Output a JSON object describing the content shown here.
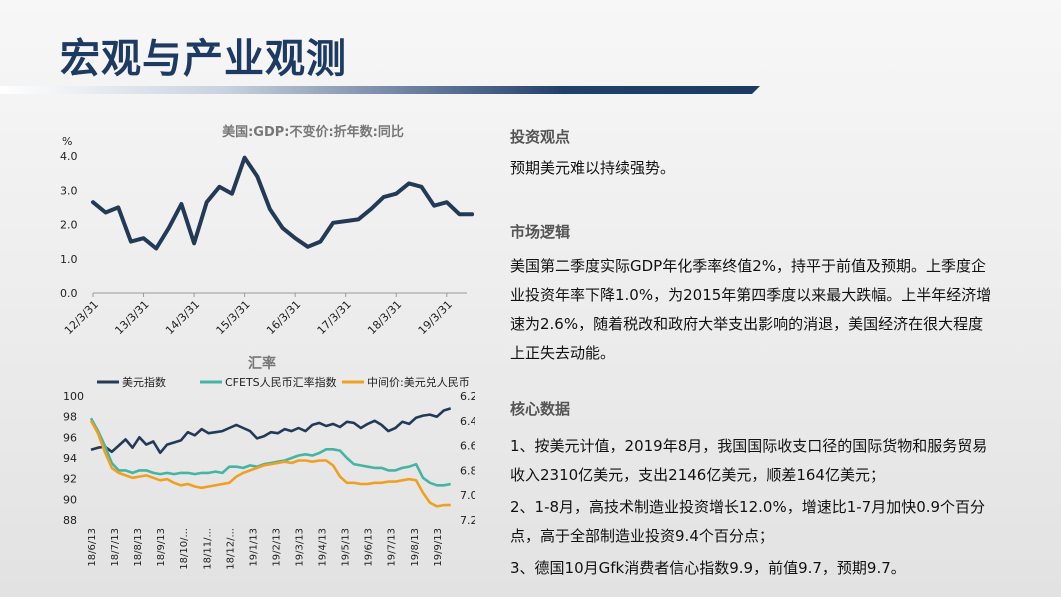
{
  "title": "宏观与产业观测",
  "chart_data": [
    {
      "type": "line",
      "title": "美国:GDP:不变价:折年数:同比",
      "ylabel": "%",
      "ylim": [
        0,
        4.0
      ],
      "yticks": [
        "0.0",
        "1.0",
        "2.0",
        "3.0",
        "4.0"
      ],
      "categories": [
        "12/3/31",
        "13/3/31",
        "14/3/31",
        "15/3/31",
        "16/3/31",
        "17/3/31",
        "18/3/31",
        "19/3/31"
      ],
      "series": [
        {
          "name": "",
          "color": "#233a56",
          "x": [
            0,
            0.25,
            0.5,
            0.75,
            1,
            1.25,
            1.5,
            1.75,
            2,
            2.25,
            2.5,
            2.75,
            3,
            3.25,
            3.5,
            3.75,
            4,
            4.25,
            4.5,
            4.75,
            5,
            5.25,
            5.5,
            5.75,
            6,
            6.25,
            6.5,
            6.75,
            7,
            7.25,
            7.5
          ],
          "values": [
            2.65,
            2.35,
            2.5,
            1.5,
            1.6,
            1.3,
            1.9,
            2.6,
            1.45,
            2.65,
            3.1,
            2.9,
            3.95,
            3.4,
            2.45,
            1.9,
            1.6,
            1.35,
            1.5,
            2.05,
            2.1,
            2.15,
            2.45,
            2.8,
            2.9,
            3.2,
            3.1,
            2.55,
            2.65,
            2.3,
            2.3
          ]
        }
      ]
    },
    {
      "type": "line",
      "title": "汇率",
      "categories": [
        "18/6/13",
        "18/7/13",
        "18/8/13",
        "18/9/13",
        "18/10/...",
        "18/11/...",
        "18/12/...",
        "19/1/13",
        "19/2/13",
        "19/3/13",
        "19/4/13",
        "19/5/13",
        "19/6/13",
        "19/7/13",
        "19/8/13",
        "19/9/13"
      ],
      "y_left": {
        "ylim": [
          88,
          100
        ],
        "ticks": [
          "88",
          "90",
          "92",
          "94",
          "96",
          "98",
          "100"
        ]
      },
      "y_right": {
        "ylim": [
          7.2,
          6.2
        ],
        "inverted": true,
        "ticks": [
          "6.2",
          "6.4",
          "6.6",
          "6.8",
          "7.0",
          "7.2"
        ]
      },
      "legend": "top",
      "series": [
        {
          "name": "美元指数",
          "axis": "left",
          "color": "#233a56",
          "x": [
            0,
            0.3,
            0.6,
            0.9,
            1.2,
            1.5,
            1.8,
            2.1,
            2.4,
            2.7,
            3,
            3.3,
            3.6,
            3.9,
            4.2,
            4.5,
            4.8,
            5.1,
            5.4,
            5.7,
            6,
            6.3,
            6.6,
            6.9,
            7.2,
            7.5,
            7.8,
            8.1,
            8.4,
            8.7,
            9,
            9.3,
            9.6,
            9.9,
            10.2,
            10.5,
            10.8,
            11.1,
            11.4,
            11.7,
            12,
            12.3,
            12.6,
            12.9,
            13.2,
            13.5,
            13.8,
            14.1,
            14.4,
            14.7,
            15,
            15.3,
            15.6
          ],
          "values": [
            94.8,
            95.0,
            95.1,
            94.6,
            95.2,
            95.8,
            95.0,
            96.0,
            95.3,
            95.6,
            94.5,
            95.3,
            95.5,
            95.7,
            96.5,
            96.2,
            96.8,
            96.4,
            96.5,
            96.6,
            96.9,
            97.2,
            96.9,
            96.6,
            95.9,
            96.1,
            96.5,
            96.4,
            96.8,
            96.6,
            96.9,
            96.6,
            97.2,
            97.4,
            97.1,
            97.3,
            97.0,
            97.5,
            97.4,
            96.9,
            97.3,
            97.6,
            97.2,
            96.6,
            96.9,
            97.5,
            97.3,
            97.9,
            98.1,
            98.2,
            98.0,
            98.6,
            98.8
          ]
        },
        {
          "name": "CFETS人民币汇率指数",
          "axis": "right",
          "color": "#47b4a2",
          "x": [
            0,
            0.3,
            0.6,
            0.9,
            1.2,
            1.5,
            1.8,
            2.1,
            2.4,
            2.7,
            3,
            3.3,
            3.6,
            3.9,
            4.2,
            4.5,
            4.8,
            5.1,
            5.4,
            5.7,
            6,
            6.3,
            6.6,
            6.9,
            7.2,
            7.5,
            7.8,
            8.1,
            8.4,
            8.7,
            9,
            9.3,
            9.6,
            9.9,
            10.2,
            10.5,
            10.8,
            11.1,
            11.4,
            11.7,
            12,
            12.3,
            12.6,
            12.9,
            13.2,
            13.5,
            13.8,
            14.1,
            14.4,
            14.7,
            15,
            15.3,
            15.6
          ],
          "values": [
            6.38,
            6.48,
            6.6,
            6.74,
            6.8,
            6.8,
            6.82,
            6.8,
            6.8,
            6.82,
            6.83,
            6.82,
            6.83,
            6.82,
            6.82,
            6.83,
            6.82,
            6.82,
            6.81,
            6.82,
            6.77,
            6.77,
            6.78,
            6.76,
            6.77,
            6.75,
            6.74,
            6.73,
            6.72,
            6.7,
            6.68,
            6.67,
            6.68,
            6.66,
            6.63,
            6.63,
            6.64,
            6.7,
            6.75,
            6.76,
            6.77,
            6.78,
            6.78,
            6.8,
            6.8,
            6.78,
            6.77,
            6.75,
            6.86,
            6.9,
            6.92,
            6.92,
            6.91
          ]
        },
        {
          "name": "中间价:美元兑人民币",
          "axis": "right",
          "color": "#f0a020",
          "x": [
            0,
            0.3,
            0.6,
            0.9,
            1.2,
            1.5,
            1.8,
            2.1,
            2.4,
            2.7,
            3,
            3.3,
            3.6,
            3.9,
            4.2,
            4.5,
            4.8,
            5.1,
            5.4,
            5.7,
            6,
            6.3,
            6.6,
            6.9,
            7.2,
            7.5,
            7.8,
            8.1,
            8.4,
            8.7,
            9,
            9.3,
            9.6,
            9.9,
            10.2,
            10.5,
            10.8,
            11.1,
            11.4,
            11.7,
            12,
            12.3,
            12.6,
            12.9,
            13.2,
            13.5,
            13.8,
            14.1,
            14.4,
            14.7,
            15,
            15.3,
            15.6
          ],
          "values": [
            6.4,
            6.5,
            6.65,
            6.78,
            6.82,
            6.84,
            6.86,
            6.85,
            6.84,
            6.86,
            6.88,
            6.87,
            6.9,
            6.92,
            6.91,
            6.93,
            6.94,
            6.93,
            6.92,
            6.91,
            6.9,
            6.85,
            6.82,
            6.8,
            6.78,
            6.76,
            6.75,
            6.74,
            6.73,
            6.74,
            6.72,
            6.72,
            6.73,
            6.72,
            6.72,
            6.76,
            6.85,
            6.9,
            6.9,
            6.91,
            6.91,
            6.9,
            6.9,
            6.89,
            6.89,
            6.88,
            6.87,
            6.88,
            6.98,
            7.06,
            7.09,
            7.08,
            7.08
          ]
        }
      ]
    }
  ],
  "sections": {
    "view": {
      "heading": "投资观点",
      "text": "预期美元难以持续强势。"
    },
    "logic": {
      "heading": "市场逻辑",
      "text": "美国第二季度实际GDP年化季率终值2%，持平于前值及预期。上季度企业投资年率下降1.0%，为2015年第四季度以来最大跌幅。上半年经济增速为2.6%，随着税改和政府大举支出影响的消退，美国经济在很大程度上正失去动能。"
    },
    "core": {
      "heading": "核心数据",
      "items": [
        "1、按美元计值，2019年8月，我国国际收支口径的国际货物和服务贸易收入2310亿美元，支出2146亿美元，顺差164亿美元；",
        "2、1-8月，高技术制造业投资增长12.0%，增速比1-7月加快0.9个百分点，高于全部制造业投资9.4个百分点；",
        "3、德国10月Gfk消费者信心指数9.9，前值9.7，预期9.7。"
      ]
    }
  }
}
